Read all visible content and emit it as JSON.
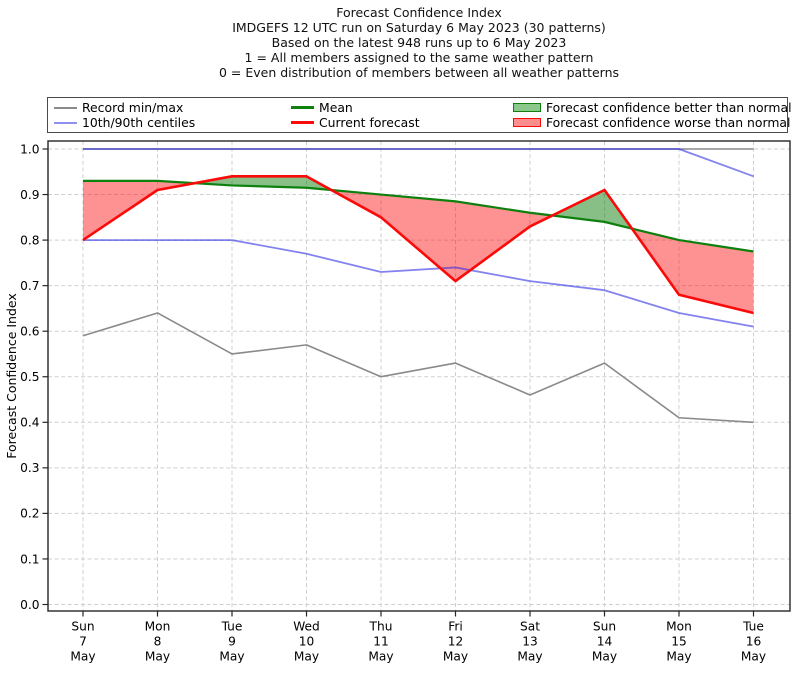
{
  "figure": {
    "title_lines": [
      "Forecast Confidence Index",
      "IMDGEFS 12 UTC run on Saturday 6 May 2023 (30 patterns)",
      "Based on the latest 948 runs up to 6 May 2023",
      "1 = All members assigned to the same weather pattern",
      "0 = Even distribution of members between all weather patterns"
    ]
  },
  "legend": {
    "entries": [
      {
        "label": "Record min/max",
        "swatch": "line",
        "color": "#8a8a8a",
        "thickness": 2
      },
      {
        "label": "10th/90th centiles",
        "swatch": "line",
        "color": "#8f8ff1",
        "thickness": 2
      },
      {
        "label": "Mean",
        "swatch": "line",
        "color": "#0e800e",
        "thickness": 2.4
      },
      {
        "label": "Current forecast",
        "swatch": "line",
        "color": "#fb0a0a",
        "thickness": 2.4
      },
      {
        "label": "Forecast confidence better than normal",
        "swatch": "patch",
        "color": "#8cc88c",
        "edge": "#0e800e"
      },
      {
        "label": "Forecast confidence worse than normal",
        "swatch": "patch",
        "color": "#fc8e8e",
        "edge": "#fb0a0a"
      }
    ]
  },
  "chart_data": {
    "type": "line",
    "title": "Forecast Confidence Index",
    "ylabel": "Forecast Confidence Index",
    "ylim": [
      0.0,
      1.0
    ],
    "yticks": [
      0.0,
      0.1,
      0.2,
      0.3,
      0.4,
      0.5,
      0.6,
      0.7,
      0.8,
      0.9,
      1.0
    ],
    "grid": true,
    "legend_position": "top",
    "categories": [
      [
        "Sun",
        "7",
        "May"
      ],
      [
        "Mon",
        "8",
        "May"
      ],
      [
        "Tue",
        "9",
        "May"
      ],
      [
        "Wed",
        "10",
        "May"
      ],
      [
        "Thu",
        "11",
        "May"
      ],
      [
        "Fri",
        "12",
        "May"
      ],
      [
        "Sat",
        "13",
        "May"
      ],
      [
        "Sun",
        "14",
        "May"
      ],
      [
        "Mon",
        "15",
        "May"
      ],
      [
        "Tue",
        "16",
        "May"
      ]
    ],
    "series": [
      {
        "key": "record_max",
        "name": "Record max",
        "color": "#8a8a8a",
        "width": 1.6,
        "opacity": 1,
        "values": [
          1.0,
          1.0,
          1.0,
          1.0,
          1.0,
          1.0,
          1.0,
          1.0,
          1.0,
          1.0
        ]
      },
      {
        "key": "record_min",
        "name": "Record min",
        "color": "#8a8a8a",
        "width": 1.6,
        "opacity": 1,
        "values": [
          0.59,
          0.64,
          0.55,
          0.57,
          0.5,
          0.53,
          0.46,
          0.53,
          0.41,
          0.4
        ]
      },
      {
        "key": "centile_10",
        "name": "10th centile",
        "color": "#3030e4",
        "width": 1.8,
        "opacity": 0.6,
        "values": [
          0.8,
          0.8,
          0.8,
          0.77,
          0.73,
          0.74,
          0.71,
          0.69,
          0.64,
          0.61
        ]
      },
      {
        "key": "centile_90",
        "name": "90th centile",
        "color": "#3030e4",
        "width": 1.8,
        "opacity": 0.6,
        "values": [
          1.0,
          1.0,
          1.0,
          1.0,
          1.0,
          1.0,
          1.0,
          1.0,
          1.0,
          0.94
        ]
      },
      {
        "key": "mean",
        "name": "Mean",
        "color": "#0e800e",
        "width": 2.2,
        "opacity": 1,
        "values": [
          0.93,
          0.93,
          0.92,
          0.915,
          0.9,
          0.885,
          0.86,
          0.84,
          0.8,
          0.775
        ]
      },
      {
        "key": "forecast",
        "name": "Current forecast",
        "color": "#fb0a0a",
        "width": 2.6,
        "opacity": 1,
        "values": [
          0.8,
          0.91,
          0.94,
          0.94,
          0.85,
          0.71,
          0.83,
          0.91,
          0.68,
          0.64
        ]
      }
    ],
    "fills": {
      "between": [
        "mean",
        "forecast"
      ],
      "better_color": "rgba(16,128,16,0.5)",
      "worse_color": "rgba(252,10,10,0.45)"
    }
  }
}
